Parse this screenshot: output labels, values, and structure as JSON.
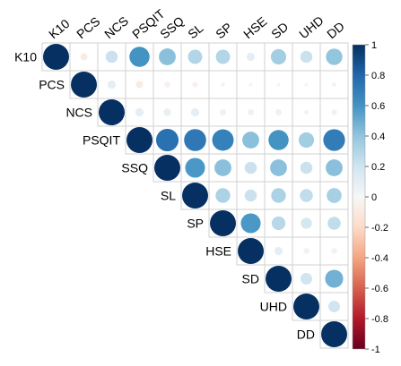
{
  "chart_data": {
    "type": "heatmap",
    "style": "correlation-circle-upper-triangle",
    "variables": [
      "K10",
      "PCS",
      "NCS",
      "PSQIT",
      "SSQ",
      "SL",
      "SP",
      "HSE",
      "SD",
      "UHD",
      "DD"
    ],
    "matrix": [
      [
        1.0,
        -0.08,
        0.22,
        0.6,
        0.42,
        0.3,
        0.3,
        0.1,
        0.35,
        0.22,
        0.4
      ],
      [
        -0.08,
        1.0,
        0.1,
        -0.08,
        -0.05,
        -0.05,
        -0.03,
        0.02,
        -0.02,
        0.02,
        -0.03
      ],
      [
        0.22,
        0.1,
        1.0,
        0.1,
        0.08,
        0.1,
        0.06,
        0.06,
        0.06,
        0.03,
        0.05
      ],
      [
        0.6,
        -0.08,
        0.1,
        1.0,
        0.75,
        0.72,
        0.68,
        0.42,
        0.6,
        0.35,
        0.7
      ],
      [
        0.42,
        -0.05,
        0.08,
        0.75,
        1.0,
        0.58,
        0.42,
        0.22,
        0.42,
        0.22,
        0.42
      ],
      [
        0.3,
        -0.05,
        0.1,
        0.72,
        0.58,
        1.0,
        0.32,
        0.22,
        0.32,
        0.25,
        0.33
      ],
      [
        0.3,
        -0.03,
        0.06,
        0.68,
        0.42,
        0.32,
        1.0,
        0.58,
        0.28,
        0.18,
        0.25
      ],
      [
        0.1,
        0.02,
        0.06,
        0.42,
        0.22,
        0.22,
        0.58,
        1.0,
        0.1,
        0.05,
        0.05
      ],
      [
        0.35,
        -0.02,
        0.06,
        0.6,
        0.42,
        0.32,
        0.28,
        0.1,
        1.0,
        0.2,
        0.48
      ],
      [
        0.22,
        0.02,
        0.03,
        0.35,
        0.22,
        0.25,
        0.18,
        0.05,
        0.2,
        1.0,
        0.2
      ],
      [
        0.4,
        -0.03,
        0.05,
        0.7,
        0.42,
        0.33,
        0.25,
        0.05,
        0.48,
        0.2,
        1.0
      ]
    ],
    "colorbar": {
      "ticks": [
        "1",
        "0.8",
        "0.6",
        "0.4",
        "0.2",
        "0",
        "-0.2",
        "-0.4",
        "-0.6",
        "-0.8",
        "-1"
      ],
      "range": [
        -1,
        1
      ],
      "colors": {
        "-1": "#67001f",
        "-0.8": "#b2182b",
        "-0.6": "#d6604d",
        "-0.4": "#f4a582",
        "-0.2": "#fddbc7",
        "0": "#f7f7f7",
        "0.2": "#d1e5f0",
        "0.4": "#92c5de",
        "0.6": "#4393c3",
        "0.8": "#2166ac",
        "1": "#053061"
      }
    },
    "grid": true,
    "title": "",
    "xlabel": "",
    "ylabel": ""
  }
}
